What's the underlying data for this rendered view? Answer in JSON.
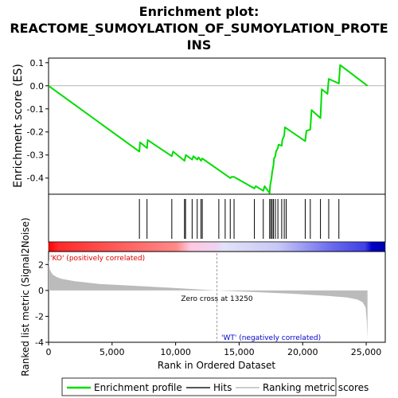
{
  "chart_data": {
    "type": "line",
    "title_lines": [
      "Enrichment plot:",
      "REACTOME_SUMOYLATION_OF_SUMOYLATION_PROTE",
      "INS"
    ],
    "es_panel": {
      "ylabel": "Enrichment score (ES)",
      "ylim": [
        -0.47,
        0.12
      ],
      "yticks": [
        0.1,
        0.0,
        -0.1,
        -0.2,
        -0.3,
        -0.4
      ],
      "ytick_labels": [
        "0.1",
        "0.0",
        "-0.1",
        "-0.2",
        "-0.3",
        "-0.4"
      ],
      "series": [
        {
          "name": "Enrichment profile",
          "color": "#00dd00",
          "x": [
            0,
            7150,
            7200,
            7750,
            7800,
            9700,
            9800,
            10700,
            10800,
            11300,
            11400,
            11700,
            11800,
            12000,
            12100,
            14300,
            14400,
            14600,
            16200,
            16300,
            16900,
            17000,
            17400,
            17450,
            17550,
            17600,
            17700,
            17750,
            17850,
            17900,
            18050,
            18100,
            18350,
            18400,
            18550,
            18600,
            20200,
            20300,
            20600,
            20700,
            21400,
            21500,
            21950,
            22050,
            22850,
            22950,
            25100
          ],
          "y": [
            0.0,
            -0.285,
            -0.245,
            -0.27,
            -0.235,
            -0.305,
            -0.285,
            -0.325,
            -0.3,
            -0.32,
            -0.305,
            -0.32,
            -0.31,
            -0.325,
            -0.315,
            -0.4,
            -0.395,
            -0.395,
            -0.445,
            -0.435,
            -0.455,
            -0.435,
            -0.465,
            -0.43,
            -0.4,
            -0.375,
            -0.345,
            -0.315,
            -0.305,
            -0.285,
            -0.27,
            -0.255,
            -0.26,
            -0.235,
            -0.215,
            -0.18,
            -0.24,
            -0.195,
            -0.19,
            -0.105,
            -0.14,
            -0.015,
            -0.035,
            0.03,
            0.01,
            0.09,
            0.0
          ]
        }
      ]
    },
    "hits": {
      "name": "Hits",
      "x": [
        7150,
        7750,
        9700,
        10700,
        10780,
        11300,
        11700,
        12000,
        12100,
        13400,
        13900,
        14300,
        14600,
        16200,
        16900,
        17400,
        17500,
        17600,
        17700,
        17850,
        18050,
        18350,
        18550,
        18700,
        20200,
        20600,
        21400,
        22050,
        22850
      ]
    },
    "rank_axis": {
      "xlabel": "Rank in Ordered Dataset",
      "xlim": [
        0,
        26500
      ],
      "xticks": [
        0,
        5000,
        10000,
        15000,
        20000,
        25000
      ],
      "xtick_labels": [
        "0",
        "5,000",
        "10,000",
        "15,000",
        "20,000",
        "25,000"
      ],
      "n_genes": 25100
    },
    "metric_panel": {
      "ylabel": "Ranked list metric (Signal2Noise)",
      "ylim": [
        -4,
        3
      ],
      "yticks": [
        2,
        0,
        -2,
        -4
      ],
      "ytick_labels": [
        "2",
        "0",
        "-2",
        "-4"
      ],
      "series_name": "Ranking metric scores",
      "metric_curve": {
        "x": [
          0,
          100,
          300,
          600,
          1000,
          2000,
          4000,
          7000,
          10000,
          13250,
          16000,
          19000,
          22000,
          23500,
          24300,
          24700,
          24950,
          25050,
          25100
        ],
        "y": [
          2.4,
          1.6,
          1.25,
          1.05,
          0.9,
          0.72,
          0.5,
          0.35,
          0.18,
          0.0,
          -0.12,
          -0.25,
          -0.42,
          -0.55,
          -0.7,
          -0.9,
          -1.3,
          -2.5,
          -3.8
        ]
      },
      "zero_cross_text": "Zero cross at 13250",
      "zero_cross_rank": 13250,
      "pos_label": "'KO' (positively correlated)",
      "neg_label": "'WT' (negatively correlated)"
    },
    "legend": {
      "placement": "bottom",
      "items": [
        "Enrichment profile",
        "Hits",
        "Ranking metric scores"
      ]
    },
    "colors": {
      "es_line": "#00dd00",
      "hit_line": "#000000",
      "bar_pos": "#ff0000",
      "bar_neg": "#0000ff",
      "metric_fill": "#bbbbbb",
      "pos_label": "#dd0000",
      "neg_label": "#0000cc"
    }
  }
}
